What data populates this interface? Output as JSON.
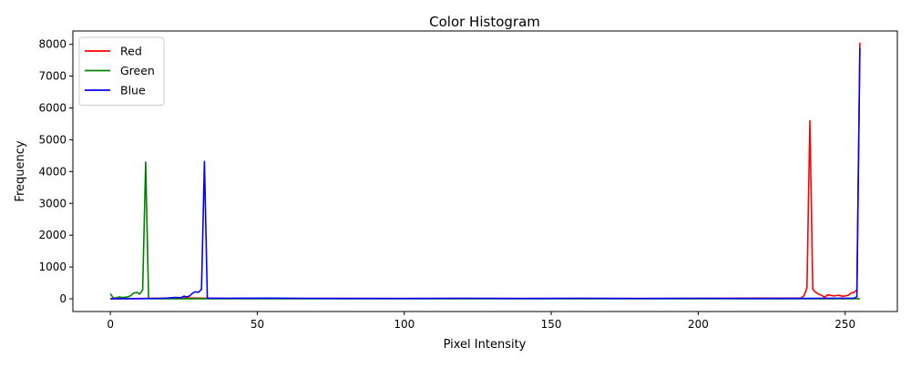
{
  "chart_data": {
    "type": "line",
    "title": "Color Histogram",
    "xlabel": "Pixel Intensity",
    "ylabel": "Frequency",
    "xlim": [
      -12.75,
      267.75
    ],
    "ylim": [
      -400,
      8420
    ],
    "xticks": [
      0,
      50,
      100,
      150,
      200,
      250
    ],
    "yticks": [
      0,
      1000,
      2000,
      3000,
      4000,
      5000,
      6000,
      7000,
      8000
    ],
    "grid": false,
    "legend": "top-left",
    "series": [
      {
        "name": "Red",
        "color": "#ff0000",
        "points": [
          [
            0,
            0
          ],
          [
            20,
            20
          ],
          [
            25,
            30
          ],
          [
            30,
            20
          ],
          [
            40,
            15
          ],
          [
            60,
            10
          ],
          [
            80,
            15
          ],
          [
            100,
            10
          ],
          [
            120,
            15
          ],
          [
            140,
            10
          ],
          [
            160,
            15
          ],
          [
            180,
            10
          ],
          [
            200,
            15
          ],
          [
            220,
            20
          ],
          [
            235,
            20
          ],
          [
            236,
            100
          ],
          [
            237,
            350
          ],
          [
            238,
            5600
          ],
          [
            239,
            300
          ],
          [
            240,
            200
          ],
          [
            241,
            150
          ],
          [
            242,
            110
          ],
          [
            243,
            50
          ],
          [
            244,
            120
          ],
          [
            245,
            110
          ],
          [
            246,
            90
          ],
          [
            247,
            100
          ],
          [
            248,
            110
          ],
          [
            249,
            80
          ],
          [
            250,
            90
          ],
          [
            251,
            110
          ],
          [
            252,
            180
          ],
          [
            253,
            200
          ],
          [
            254,
            280
          ],
          [
            255,
            8050
          ]
        ]
      },
      {
        "name": "Green",
        "color": "#008000",
        "points": [
          [
            0,
            160
          ],
          [
            1,
            20
          ],
          [
            2,
            30
          ],
          [
            3,
            60
          ],
          [
            4,
            40
          ],
          [
            5,
            50
          ],
          [
            6,
            60
          ],
          [
            7,
            100
          ],
          [
            8,
            180
          ],
          [
            9,
            200
          ],
          [
            10,
            150
          ],
          [
            11,
            280
          ],
          [
            12,
            4300
          ],
          [
            13,
            10
          ],
          [
            14,
            5
          ],
          [
            20,
            5
          ],
          [
            32,
            5
          ],
          [
            60,
            5
          ],
          [
            100,
            5
          ],
          [
            150,
            5
          ],
          [
            200,
            5
          ],
          [
            250,
            5
          ],
          [
            255,
            5
          ]
        ]
      },
      {
        "name": "Blue",
        "color": "#0000ff",
        "points": [
          [
            0,
            5
          ],
          [
            10,
            5
          ],
          [
            14,
            10
          ],
          [
            18,
            15
          ],
          [
            20,
            30
          ],
          [
            22,
            40
          ],
          [
            24,
            35
          ],
          [
            25,
            80
          ],
          [
            26,
            60
          ],
          [
            27,
            90
          ],
          [
            28,
            180
          ],
          [
            29,
            220
          ],
          [
            30,
            200
          ],
          [
            31,
            300
          ],
          [
            32,
            4320
          ],
          [
            33,
            20
          ],
          [
            40,
            15
          ],
          [
            55,
            20
          ],
          [
            65,
            15
          ],
          [
            80,
            10
          ],
          [
            100,
            10
          ],
          [
            120,
            15
          ],
          [
            140,
            10
          ],
          [
            160,
            15
          ],
          [
            180,
            10
          ],
          [
            200,
            15
          ],
          [
            220,
            10
          ],
          [
            240,
            15
          ],
          [
            253,
            20
          ],
          [
            254,
            60
          ],
          [
            255,
            7880
          ]
        ]
      }
    ]
  }
}
